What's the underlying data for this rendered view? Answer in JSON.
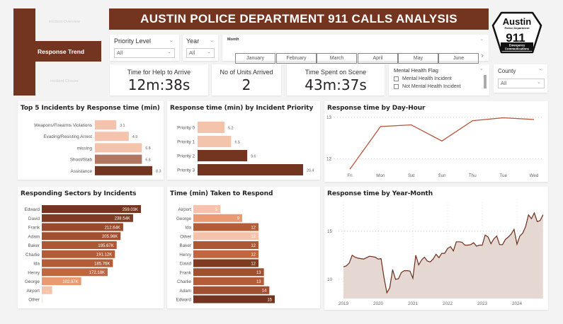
{
  "nav": {
    "items": [
      {
        "label": "Incident Overview",
        "active": false
      },
      {
        "label": "Response Trend",
        "active": true
      },
      {
        "label": "Incident Closure",
        "active": false
      }
    ]
  },
  "header": {
    "title": "AUSTIN POLICE DEPARTMENT 911 CALLS ANALYSIS",
    "logo": {
      "line1": "Austin",
      "line2": "Police Department",
      "line3": "911",
      "line4": "Emergency",
      "line5": "Communications"
    }
  },
  "slicers": {
    "priority": {
      "title": "Priority Level",
      "value": "All"
    },
    "year": {
      "title": "Year",
      "value": "All"
    },
    "month": {
      "title": "Month",
      "options": [
        "January",
        "February",
        "March",
        "April",
        "May",
        "June"
      ]
    },
    "mental_health": {
      "title": "Mental Health Flag",
      "options": [
        "Mental Health Incident",
        "Not Mental Health Incident"
      ]
    },
    "county": {
      "title": "County",
      "value": "All"
    }
  },
  "kpis": [
    {
      "label": "Time for Help to Arrive",
      "value": "12m:38s"
    },
    {
      "label": "No of Units Arrived",
      "value": "2"
    },
    {
      "label": "Time Spent on Scene",
      "value": "43m:37s"
    }
  ],
  "colors": {
    "dark": "#733520",
    "mid": "#b07660",
    "light": "#f3c4ab",
    "line": "#b5533a",
    "area_line": "#6b2e1b",
    "area_fill": "#e5d8d3"
  },
  "chart_data": [
    {
      "id": "top5",
      "type": "bar",
      "title": "Top 5 Incidents by Response time (min)",
      "categories": [
        "Weapons/Firearms Violations",
        "Evading/Resisting Arrest",
        "missing",
        "Shoot/Stab",
        "Assistance"
      ],
      "values": [
        3.1,
        4.9,
        6.8,
        6.8,
        8.3
      ],
      "labels": [
        "3.1",
        "4.9",
        "6.8",
        "6.8",
        "8.3"
      ],
      "bar_colors": [
        "#f3c4ab",
        "#f3c4ab",
        "#f3c4ab",
        "#b07660",
        "#733520"
      ]
    },
    {
      "id": "priority",
      "type": "bar",
      "title": "Response time (min) by Incident Priority",
      "categories": [
        "Priority 0",
        "Priority 1",
        "Priority 2",
        "Priority 3"
      ],
      "values": [
        5.2,
        6.5,
        9.6,
        20.4
      ],
      "labels": [
        "5.2",
        "6.5",
        "9.6",
        "20.4"
      ],
      "bar_colors": [
        "#f3c4ab",
        "#f3c4ab",
        "#733520",
        "#733520"
      ]
    },
    {
      "id": "dayhour",
      "type": "line",
      "title": "Response time by Day-Hour",
      "categories": [
        "Fri",
        "Mon",
        "Sat",
        "Sun",
        "Thu",
        "Tue",
        "Wed"
      ],
      "values": [
        11.75,
        12.78,
        12.82,
        12.43,
        12.92,
        12.99,
        12.95
      ],
      "yticks": [
        12,
        13
      ],
      "ylim": [
        11.6,
        13.05
      ]
    },
    {
      "id": "sectors",
      "type": "bar",
      "title": "Responding Sectors by Incidents",
      "categories": [
        "Edward",
        "David",
        "Frank",
        "Adam",
        "Baker",
        "Charlie",
        "Ida",
        "Henry",
        "George",
        "Airport",
        "Other"
      ],
      "values": [
        259030,
        238540,
        212640,
        205960,
        195670,
        191120,
        185760,
        172180,
        102970,
        27000,
        1000
      ],
      "labels": [
        "259.03K",
        "238.54K",
        "212.64K",
        "205.96K",
        "195.67K",
        "191.12K",
        "185.76K",
        "172.18K",
        "102.97K",
        "...",
        ""
      ],
      "bar_colors": [
        "#733520",
        "#7e3b22",
        "#9a4a2c",
        "#a04f30",
        "#ad5835",
        "#b35c38",
        "#b35c38",
        "#c0673f",
        "#e99a73",
        "#f5c2ab",
        "#f8d5c5"
      ]
    },
    {
      "id": "taken",
      "type": "bar",
      "title": "Time (min) Taken to Respond",
      "categories": [
        "Airport",
        "George",
        "Ida",
        "Other",
        "Baker",
        "Henry",
        "David",
        "Frank",
        "Charlie",
        "Adam",
        "Edward"
      ],
      "values": [
        5,
        9,
        12,
        12,
        12,
        12,
        12,
        13,
        13,
        14,
        15
      ],
      "labels": [
        "5",
        "9",
        "12",
        "12",
        "12",
        "12",
        "12",
        "13",
        "13",
        "14",
        "15"
      ],
      "bar_colors": [
        "#f5c2ab",
        "#e99a73",
        "#b35c38",
        "#f5c2ab",
        "#ad5835",
        "#c0673f",
        "#7e3b22",
        "#a04f30",
        "#b35c38",
        "#a04f30",
        "#733520"
      ]
    },
    {
      "id": "yearmonth",
      "type": "area",
      "title": "Response time by Year-Month",
      "xticks": [
        "2019",
        "2020",
        "2021",
        "2022",
        "2023",
        "2024"
      ],
      "yticks": [
        10,
        15
      ],
      "ylim": [
        8,
        18
      ],
      "x_start": "2019-01",
      "values": [
        11.3,
        11.4,
        11.7,
        12.5,
        12.3,
        12.2,
        12.15,
        12.1,
        12.25,
        12.4,
        12.35,
        12.3,
        12.1,
        12.15,
        10.2,
        8.6,
        9.1,
        11.0,
        10.0,
        10.05,
        10.7,
        10.9,
        10.9,
        10.85,
        10.1,
        12.5,
        11.5,
        12.0,
        12.3,
        11.9,
        11.8,
        12.1,
        12.6,
        12.25,
        12.7,
        12.7,
        13.2,
        13.4,
        12.95,
        13.9,
        13.9,
        13.85,
        13.55,
        13.55,
        13.6,
        13.8,
        13.45,
        13.55,
        13.55,
        14.6,
        14.4,
        13.7,
        14.2,
        14.5,
        13.6,
        13.6,
        14.15,
        14.4,
        14.7,
        15.2,
        13.65,
        14.5,
        14.8,
        15.5,
        16.7,
        16.3,
        16.9,
        16.0,
        16.1,
        16.7
      ]
    }
  ]
}
